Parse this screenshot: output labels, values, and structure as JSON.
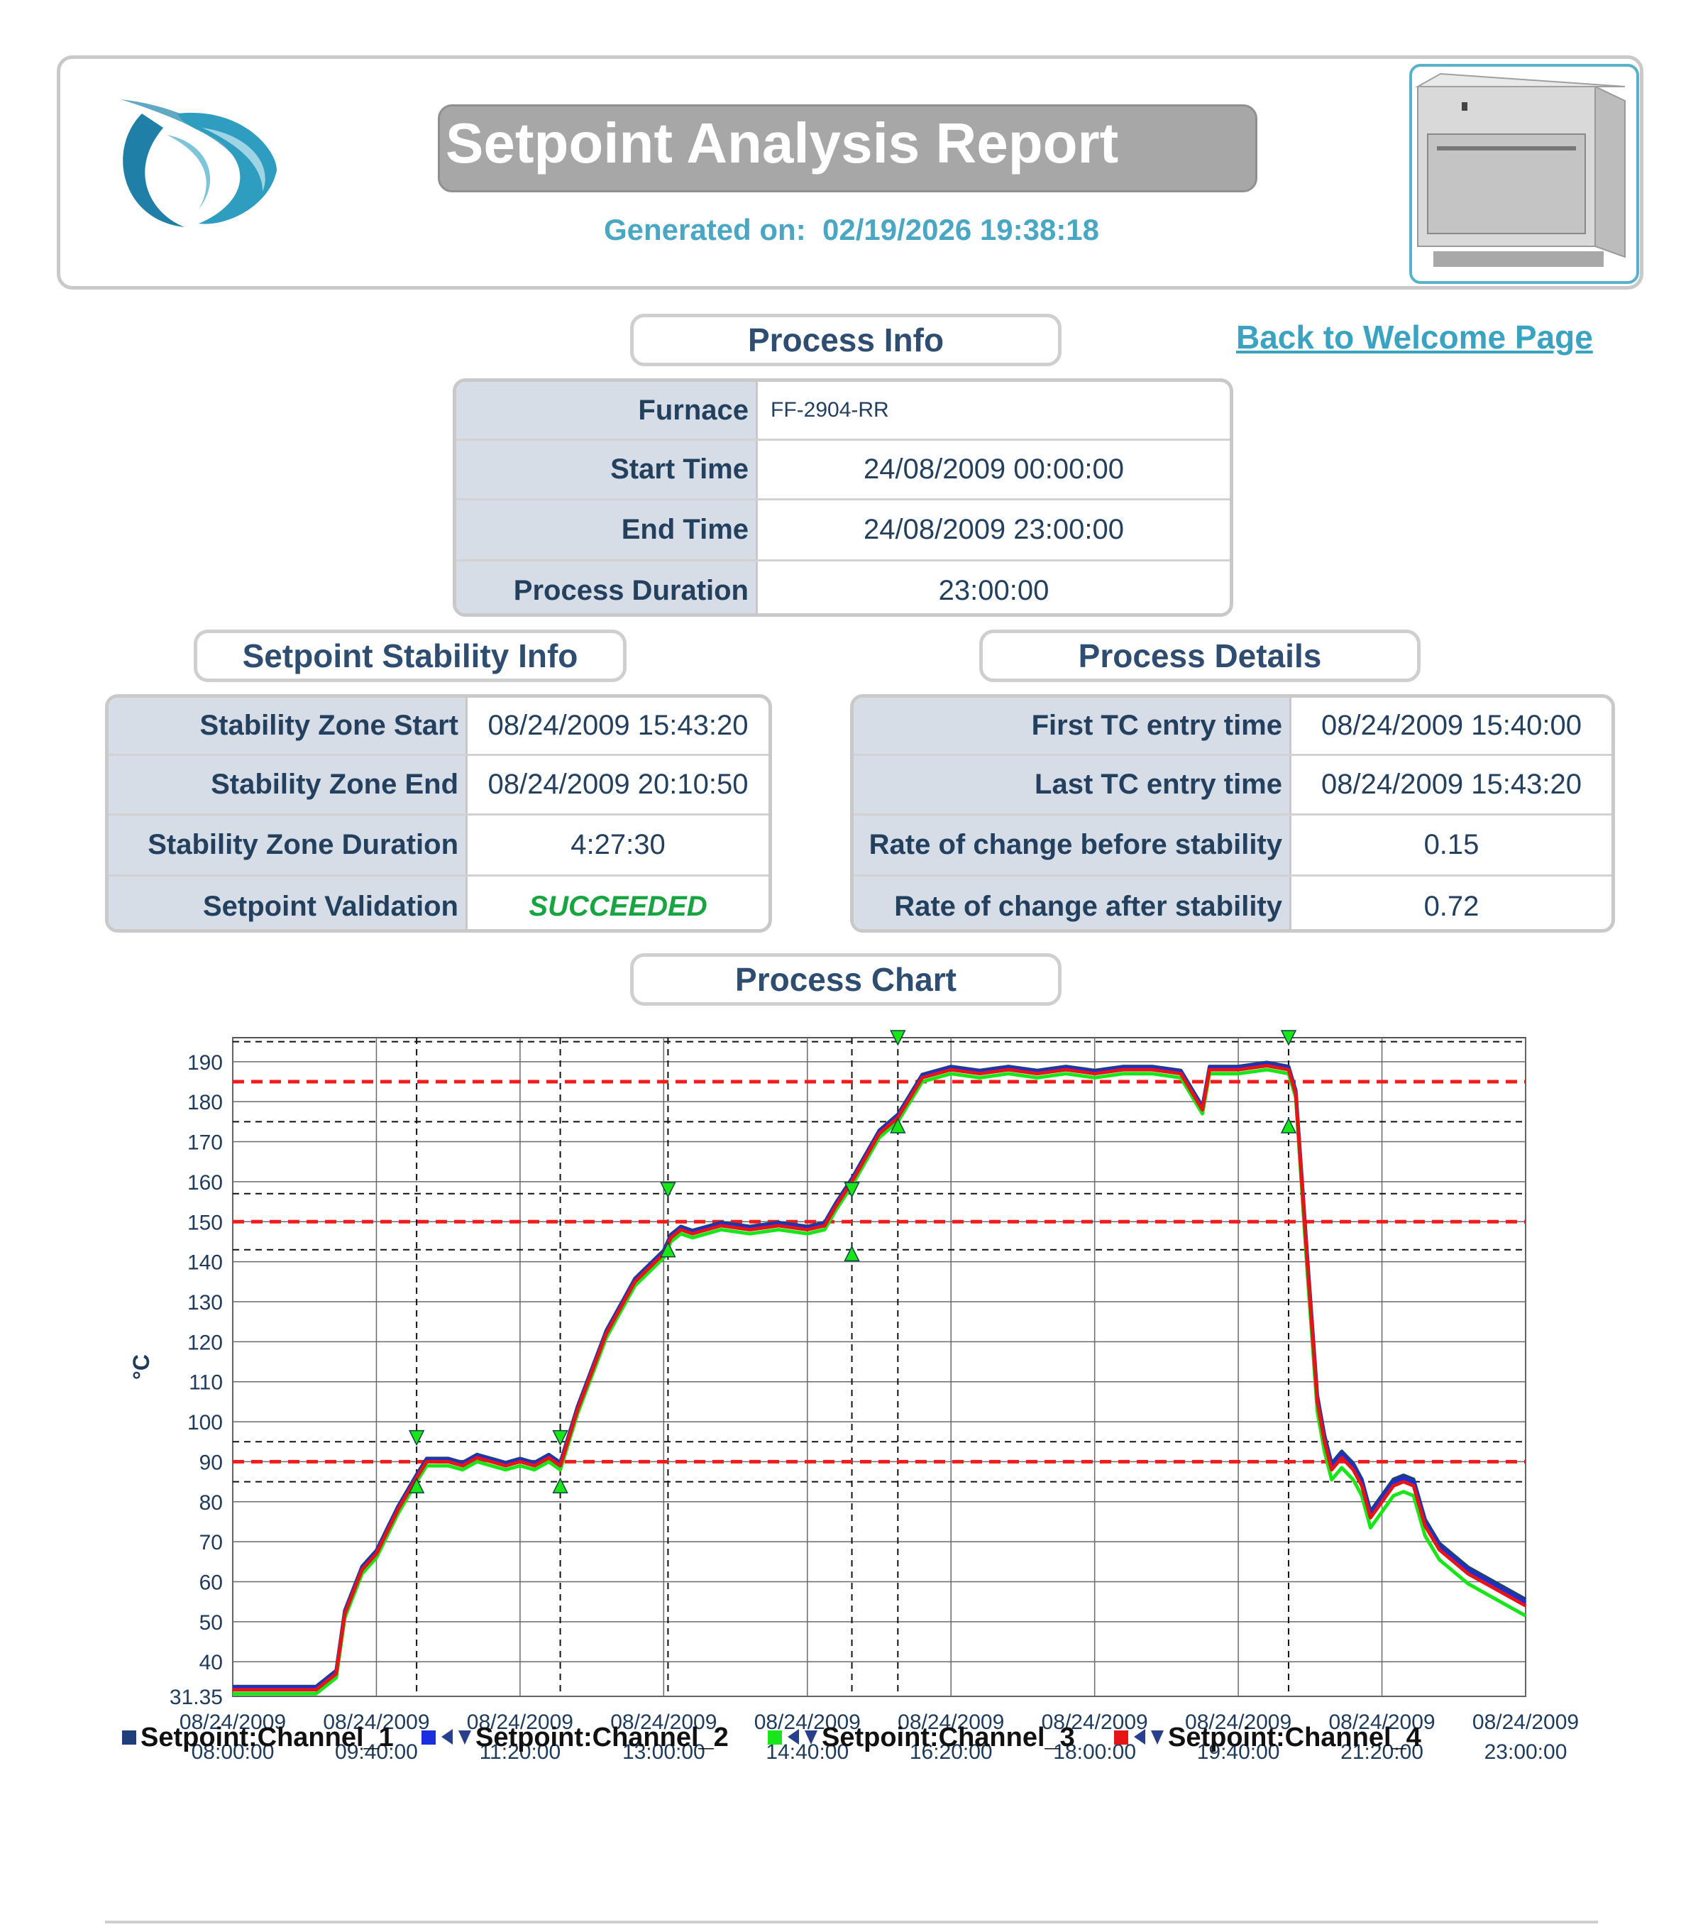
{
  "report": {
    "title": "Setpoint Analysis Report",
    "generated_label": "Generated on:",
    "generated_value": "02/19/2026 19:38:18",
    "back_link": "Back to Welcome Page"
  },
  "process_info": {
    "heading": "Process Info",
    "rows": [
      {
        "label": "Furnace",
        "value": "FF-2904-RR"
      },
      {
        "label": "Start Time",
        "value": "24/08/2009 00:00:00"
      },
      {
        "label": "End Time",
        "value": "24/08/2009 23:00:00"
      },
      {
        "label": "Process Duration",
        "value": "23:00:00"
      }
    ]
  },
  "stability_info": {
    "heading": "Setpoint Stability Info",
    "rows": [
      {
        "label": "Stability Zone Start",
        "value": "08/24/2009 15:43:20"
      },
      {
        "label": "Stability Zone End",
        "value": "08/24/2009 20:10:50"
      },
      {
        "label": "Stability Zone Duration",
        "value": "4:27:30"
      },
      {
        "label": "Setpoint Validation",
        "value": "SUCCEEDED"
      }
    ]
  },
  "process_details": {
    "heading": "Process Details",
    "rows": [
      {
        "label": "First TC entry time",
        "value": "08/24/2009 15:40:00"
      },
      {
        "label": "Last TC entry time",
        "value": "08/24/2009 15:43:20"
      },
      {
        "label": "Rate of change before stability",
        "value": "0.15"
      },
      {
        "label": "Rate of change after stability",
        "value": "0.72"
      }
    ]
  },
  "chart_heading": "Process Chart",
  "colors": {
    "accent": "#49a7c4",
    "channel_1": "#1f3f7a",
    "channel_2": "#1a2ee0",
    "channel_3": "#19e619",
    "channel_4": "#e61414",
    "setpoint_line": "#ee1c1c",
    "success": "#18a440"
  },
  "chart_data": {
    "type": "line",
    "ylabel": "°C",
    "xlabel": "",
    "ylim": [
      31.35,
      196
    ],
    "y_ticks": [
      31.35,
      40,
      50,
      60,
      70,
      80,
      90,
      100,
      110,
      120,
      130,
      140,
      150,
      160,
      170,
      180,
      190
    ],
    "x_ticks": [
      {
        "date": "08/24/2009",
        "time": "08:00:00",
        "min": 0
      },
      {
        "date": "08/24/2009",
        "time": "09:40:00",
        "min": 100
      },
      {
        "date": "08/24/2009",
        "time": "11:20:00",
        "min": 200
      },
      {
        "date": "08/24/2009",
        "time": "13:00:00",
        "min": 300
      },
      {
        "date": "08/24/2009",
        "time": "14:40:00",
        "min": 400
      },
      {
        "date": "08/24/2009",
        "time": "16:20:00",
        "min": 500
      },
      {
        "date": "08/24/2009",
        "time": "18:00:00",
        "min": 600
      },
      {
        "date": "08/24/2009",
        "time": "19:40:00",
        "min": 700
      },
      {
        "date": "08/24/2009",
        "time": "21:20:00",
        "min": 800
      },
      {
        "date": "08/24/2009",
        "time": "23:00:00",
        "min": 900
      }
    ],
    "grid": true,
    "setpoints": [
      90,
      150,
      185
    ],
    "tolerance_lines": [
      85,
      95,
      143,
      157,
      175,
      195
    ],
    "zone_markers_min": [
      128,
      228,
      303,
      431,
      463,
      735
    ],
    "triangle_markers": [
      {
        "min": 128,
        "value": 96,
        "dir": "down"
      },
      {
        "min": 128,
        "value": 84,
        "dir": "up"
      },
      {
        "min": 228,
        "value": 96,
        "dir": "down"
      },
      {
        "min": 228,
        "value": 84,
        "dir": "up"
      },
      {
        "min": 303,
        "value": 158,
        "dir": "down"
      },
      {
        "min": 303,
        "value": 143,
        "dir": "up"
      },
      {
        "min": 431,
        "value": 158,
        "dir": "down"
      },
      {
        "min": 431,
        "value": 142,
        "dir": "up"
      },
      {
        "min": 463,
        "value": 196,
        "dir": "down"
      },
      {
        "min": 463,
        "value": 174,
        "dir": "up"
      },
      {
        "min": 735,
        "value": 196,
        "dir": "down"
      },
      {
        "min": 735,
        "value": 174,
        "dir": "up"
      }
    ],
    "series_base": {
      "x": [
        0,
        58,
        72,
        78,
        90,
        100,
        115,
        128,
        135,
        150,
        160,
        170,
        180,
        190,
        200,
        210,
        220,
        228,
        240,
        260,
        280,
        300,
        305,
        312,
        320,
        340,
        360,
        380,
        400,
        412,
        420,
        431,
        450,
        463,
        480,
        500,
        520,
        540,
        560,
        580,
        600,
        620,
        640,
        660,
        675,
        680,
        690,
        700,
        720,
        735,
        740,
        748,
        755,
        760,
        765,
        772,
        780,
        786,
        792,
        800,
        808,
        815,
        822,
        830,
        840,
        860,
        880,
        900
      ],
      "y": [
        33,
        33,
        37,
        52,
        63,
        67,
        78,
        86,
        90,
        90,
        89,
        91,
        90,
        89,
        90,
        89,
        91,
        89,
        103,
        122,
        135,
        142,
        146,
        148,
        147,
        149,
        148,
        149,
        148,
        149,
        154,
        160,
        172,
        176,
        186,
        188,
        187,
        188,
        187,
        188,
        187,
        188,
        188,
        187,
        178,
        188,
        188,
        188,
        189,
        188,
        182,
        140,
        105,
        95,
        88,
        91,
        88,
        84,
        76,
        80,
        84,
        85,
        84,
        74,
        68,
        62,
        58,
        54
      ]
    },
    "series": [
      {
        "name": "Setpoint:Channel_1",
        "offset": 0.8
      },
      {
        "name": "Setpoint:Channel_2",
        "offset": 0.4
      },
      {
        "name": "Setpoint:Channel_3",
        "offset": -1.0
      },
      {
        "name": "Setpoint:Channel_4",
        "offset": 0.0
      }
    ]
  }
}
